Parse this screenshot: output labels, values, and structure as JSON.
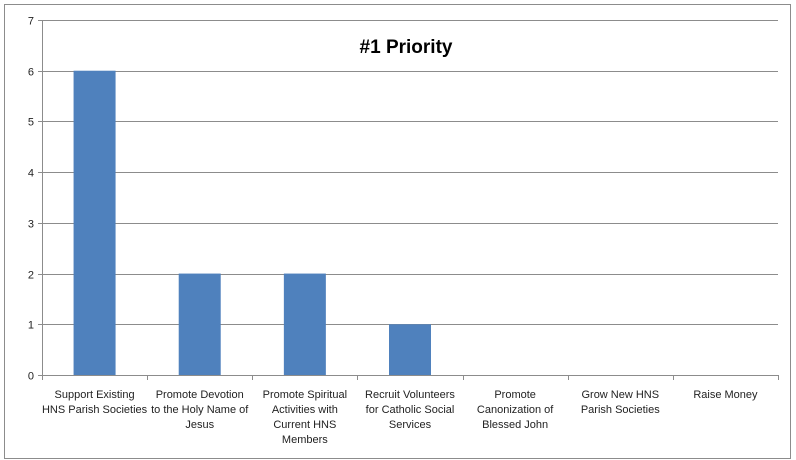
{
  "chart_data": {
    "type": "bar",
    "title": "#1 Priority",
    "xlabel": "",
    "ylabel": "",
    "ylim": [
      0,
      7
    ],
    "yticks": [
      0,
      1,
      2,
      3,
      4,
      5,
      6,
      7
    ],
    "grid": true,
    "legend": "none",
    "bar_color": "#4f81bd",
    "categories": [
      [
        "Support Existing",
        "HNS Parish Societies"
      ],
      [
        "Promote Devotion",
        "to the Holy Name of",
        "Jesus"
      ],
      [
        "Promote Spiritual",
        "Activities with",
        "Current HNS",
        "Members"
      ],
      [
        "Recruit Volunteers",
        "for Catholic Social",
        "Services"
      ],
      [
        "Promote",
        "Canonization of",
        "Blessed John"
      ],
      [
        "Grow New HNS",
        "Parish Societies"
      ],
      [
        "Raise Money"
      ]
    ],
    "values": [
      6,
      2,
      2,
      1,
      0,
      0,
      0
    ]
  }
}
